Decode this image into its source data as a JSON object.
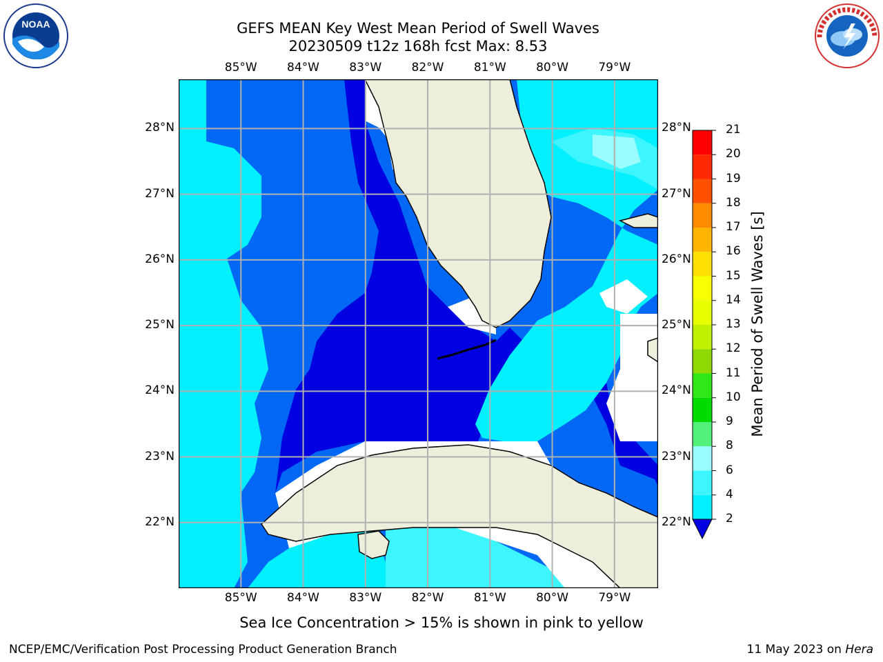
{
  "title": {
    "line1": "GEFS MEAN Key West Mean Period of Swell Waves",
    "line2": "20230509 t12z 168h fcst   Max: 8.53"
  },
  "map": {
    "lon_ticks": [
      {
        "label": "85°W",
        "lon": -85
      },
      {
        "label": "84°W",
        "lon": -84
      },
      {
        "label": "83°W",
        "lon": -83
      },
      {
        "label": "82°W",
        "lon": -82
      },
      {
        "label": "81°W",
        "lon": -81
      },
      {
        "label": "80°W",
        "lon": -80
      },
      {
        "label": "79°W",
        "lon": -79
      }
    ],
    "lat_ticks": [
      {
        "label": "28°N",
        "lat": 28
      },
      {
        "label": "27°N",
        "lat": 27
      },
      {
        "label": "26°N",
        "lat": 26
      },
      {
        "label": "25°N",
        "lat": 25
      },
      {
        "label": "24°N",
        "lat": 24
      },
      {
        "label": "23°N",
        "lat": 23
      },
      {
        "label": "22°N",
        "lat": 22
      }
    ],
    "lon_range": [
      -86,
      -78.3
    ],
    "lat_range": [
      21,
      28.75
    ],
    "grid": true,
    "colors": {
      "land": "#eeeedc",
      "coast": "#000000",
      "grid": "#b0b0b0",
      "shallow_2_4": "#0000f0",
      "band_4_6": "#0066ff",
      "band_6_8": "#00f5ff",
      "band_8_9": "#44fcff",
      "band_9_10": "#a0ffff",
      "no_data": "#ffffff"
    }
  },
  "colorbar": {
    "label": "Mean Period of Swell Waves [s]",
    "ticks": [
      "2",
      "4",
      "6",
      "8",
      "9",
      "10",
      "11",
      "12",
      "13",
      "14",
      "15",
      "16",
      "17",
      "18",
      "19",
      "20",
      "21"
    ],
    "colors": [
      "#0068f5",
      "#00f0ff",
      "#3cf5ff",
      "#9afcff",
      "#50f07a",
      "#00dc00",
      "#2ee81a",
      "#8fd800",
      "#c0f000",
      "#e8ff00",
      "#f8ff00",
      "#ffe000",
      "#ffb400",
      "#ff8c00",
      "#ff5000",
      "#ff2800",
      "#ff0000"
    ],
    "extend_low_color": "#0000e0"
  },
  "note": "Sea Ice Concentration > 15% is shown in pink to yellow",
  "footer": {
    "left": "NCEP/EMC/Verification Post Processing Product Generation Branch",
    "right_date": "11 May 2023 on ",
    "right_host": "Hera"
  },
  "logos": {
    "noaa_text": "NOAA",
    "nws_text": "NATIONAL WEATHER SERVICE"
  }
}
